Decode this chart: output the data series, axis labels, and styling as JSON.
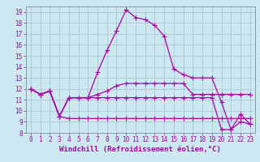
{
  "background_color": "#cce8f0",
  "grid_color": "#aabccc",
  "line_color": "#aa00aa",
  "hours": [
    0,
    1,
    2,
    3,
    4,
    5,
    6,
    7,
    8,
    9,
    10,
    11,
    12,
    13,
    14,
    15,
    16,
    17,
    18,
    19,
    20,
    21,
    22,
    23
  ],
  "series": [
    [
      12.0,
      11.5,
      11.8,
      9.5,
      11.2,
      11.2,
      11.2,
      13.5,
      15.5,
      17.3,
      19.2,
      18.5,
      18.3,
      17.8,
      16.8,
      13.8,
      13.3,
      13.0,
      13.0,
      13.0,
      10.8,
      8.3,
      9.7,
      8.8
    ],
    [
      12.0,
      11.5,
      11.8,
      9.5,
      11.2,
      11.2,
      11.2,
      11.5,
      11.8,
      12.3,
      12.5,
      12.5,
      12.5,
      12.5,
      12.5,
      12.5,
      12.5,
      11.5,
      11.5,
      11.5,
      11.5,
      11.5,
      11.5,
      11.5
    ],
    [
      12.0,
      11.5,
      11.8,
      9.5,
      9.3,
      9.3,
      9.3,
      9.3,
      9.3,
      9.3,
      9.3,
      9.3,
      9.3,
      9.3,
      9.3,
      9.3,
      9.3,
      9.3,
      9.3,
      9.3,
      9.3,
      9.3,
      9.3,
      9.3
    ],
    [
      12.0,
      11.5,
      11.8,
      9.5,
      11.2,
      11.2,
      11.2,
      11.2,
      11.2,
      11.2,
      11.2,
      11.2,
      11.2,
      11.2,
      11.2,
      11.2,
      11.2,
      11.2,
      11.2,
      11.2,
      8.3,
      8.3,
      9.0,
      8.8
    ]
  ],
  "xlabel": "Windchill (Refroidissement éolien,°C)",
  "ylim": [
    8,
    19.5
  ],
  "ytick_min": 8,
  "ytick_max": 19,
  "xticks": [
    0,
    1,
    2,
    3,
    4,
    5,
    6,
    7,
    8,
    9,
    10,
    11,
    12,
    13,
    14,
    15,
    16,
    17,
    18,
    19,
    20,
    21,
    22,
    23
  ],
  "marker": "+",
  "markersize": 4,
  "linewidth": 0.9,
  "tick_fontsize": 5.5,
  "xlabel_fontsize": 6.5
}
